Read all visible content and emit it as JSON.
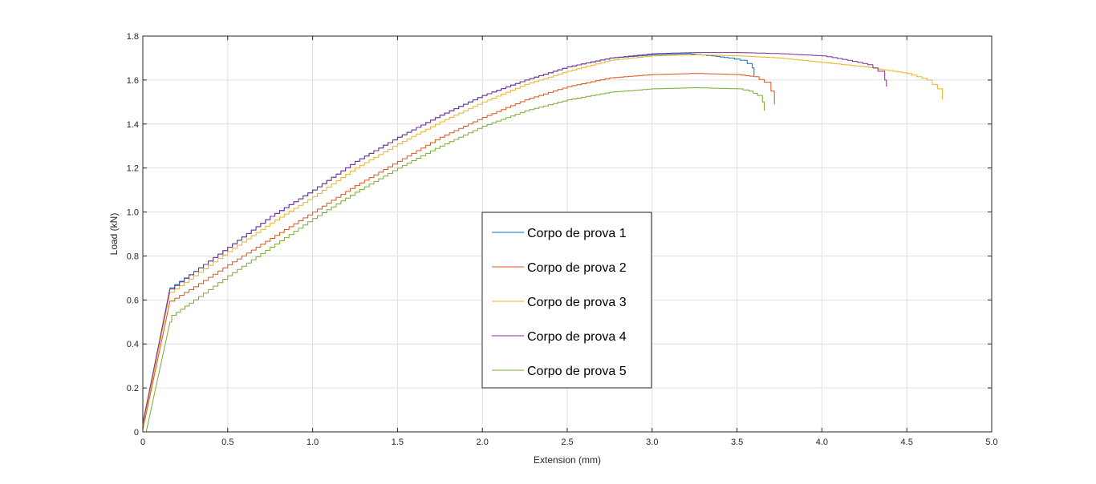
{
  "chart_data": {
    "type": "line",
    "title": "",
    "xlabel": "Extension (mm)",
    "ylabel": "Load (kN)",
    "xlim": [
      0,
      5
    ],
    "ylim": [
      0,
      1.8
    ],
    "xticks": [
      0,
      0.5,
      1,
      1.5,
      2,
      2.5,
      3,
      3.5,
      4,
      4.5,
      5
    ],
    "xtick_labels": [
      "0",
      "0.5",
      "1.0",
      "1.5",
      "2.0",
      "2.5",
      "3.0",
      "3.5",
      "4.0",
      "4.5",
      "5.0"
    ],
    "yticks": [
      0,
      0.2,
      0.4,
      0.6,
      0.8,
      1.0,
      1.2,
      1.4,
      1.6,
      1.8
    ],
    "ytick_labels": [
      "0",
      "0.2",
      "0.4",
      "0.6",
      "0.8",
      "1.0",
      "1.2",
      "1.4",
      "1.6",
      "1.8"
    ],
    "grid": true,
    "legend_position": "center",
    "series": [
      {
        "name": "Corpo de prova 1",
        "color": "#0072BD",
        "x": [
          0,
          0.16,
          0.3,
          0.5,
          0.75,
          1.0,
          1.25,
          1.5,
          1.75,
          2.0,
          2.25,
          2.5,
          2.75,
          3.0,
          3.2,
          3.35,
          3.45,
          3.52,
          3.56,
          3.59,
          3.6
        ],
        "y": [
          0.03,
          0.655,
          0.73,
          0.84,
          0.98,
          1.1,
          1.23,
          1.34,
          1.44,
          1.53,
          1.6,
          1.66,
          1.7,
          1.715,
          1.72,
          1.71,
          1.7,
          1.69,
          1.675,
          1.655,
          1.62
        ]
      },
      {
        "name": "Corpo de prova 2",
        "color": "#D95319",
        "x": [
          0,
          0.16,
          0.3,
          0.5,
          0.75,
          1.0,
          1.25,
          1.5,
          1.75,
          2.0,
          2.25,
          2.5,
          2.75,
          3.0,
          3.25,
          3.5,
          3.6,
          3.66,
          3.7,
          3.72
        ],
        "y": [
          0.01,
          0.595,
          0.66,
          0.76,
          0.88,
          1.0,
          1.12,
          1.23,
          1.34,
          1.43,
          1.51,
          1.57,
          1.61,
          1.625,
          1.63,
          1.625,
          1.615,
          1.59,
          1.55,
          1.49
        ]
      },
      {
        "name": "Corpo de prova 3",
        "color": "#EDB120",
        "x": [
          0,
          0.16,
          0.3,
          0.5,
          0.75,
          1.0,
          1.25,
          1.5,
          1.75,
          2.0,
          2.25,
          2.5,
          2.75,
          3.0,
          3.25,
          3.5,
          3.75,
          4.0,
          4.25,
          4.5,
          4.62,
          4.68,
          4.71
        ],
        "y": [
          0.02,
          0.635,
          0.71,
          0.82,
          0.95,
          1.07,
          1.2,
          1.31,
          1.41,
          1.5,
          1.58,
          1.64,
          1.69,
          1.71,
          1.715,
          1.71,
          1.7,
          1.68,
          1.66,
          1.63,
          1.6,
          1.56,
          1.51
        ]
      },
      {
        "name": "Corpo de prova 4",
        "color": "#7E2F8E",
        "x": [
          0,
          0.16,
          0.3,
          0.5,
          0.75,
          1.0,
          1.25,
          1.5,
          1.75,
          2.0,
          2.25,
          2.5,
          2.75,
          3.0,
          3.25,
          3.5,
          3.75,
          4.0,
          4.15,
          4.27,
          4.33,
          4.37,
          4.38
        ],
        "y": [
          0.04,
          0.65,
          0.73,
          0.84,
          0.98,
          1.1,
          1.23,
          1.34,
          1.44,
          1.53,
          1.6,
          1.66,
          1.7,
          1.72,
          1.725,
          1.725,
          1.72,
          1.71,
          1.69,
          1.67,
          1.64,
          1.6,
          1.57
        ]
      },
      {
        "name": "Corpo de prova 5",
        "color": "#77AC30",
        "x": [
          0.02,
          0.16,
          0.17,
          0.3,
          0.5,
          0.75,
          1.0,
          1.25,
          1.5,
          1.75,
          2.0,
          2.25,
          2.5,
          2.75,
          3.0,
          3.25,
          3.5,
          3.57,
          3.62,
          3.65,
          3.66
        ],
        "y": [
          0.0,
          0.5,
          0.53,
          0.6,
          0.71,
          0.84,
          0.97,
          1.09,
          1.2,
          1.3,
          1.39,
          1.46,
          1.51,
          1.545,
          1.56,
          1.565,
          1.56,
          1.55,
          1.53,
          1.5,
          1.46
        ]
      }
    ]
  }
}
